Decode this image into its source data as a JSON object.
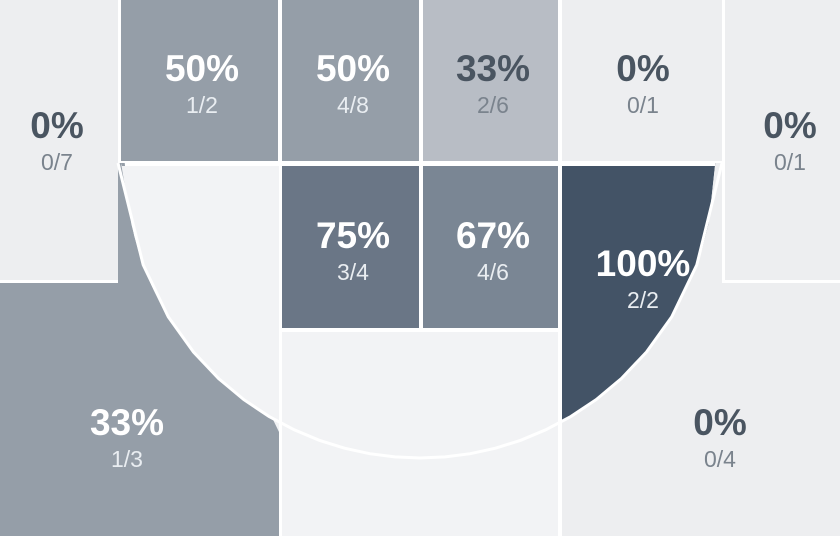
{
  "chart_data": {
    "type": "heatmap",
    "title": "",
    "zones": [
      {
        "id": "left-corner-three",
        "label": "0%",
        "made": 0,
        "attempts": 7,
        "attempts_label": "0/7"
      },
      {
        "id": "left-baseline-mid",
        "label": "50%",
        "made": 1,
        "attempts": 2,
        "attempts_label": "1/2"
      },
      {
        "id": "left-paint-top",
        "label": "50%",
        "made": 4,
        "attempts": 8,
        "attempts_label": "4/8"
      },
      {
        "id": "right-paint-top",
        "label": "33%",
        "made": 2,
        "attempts": 6,
        "attempts_label": "2/6"
      },
      {
        "id": "right-baseline-mid",
        "label": "0%",
        "made": 0,
        "attempts": 1,
        "attempts_label": "0/1"
      },
      {
        "id": "right-corner-three",
        "label": "0%",
        "made": 0,
        "attempts": 1,
        "attempts_label": "0/1"
      },
      {
        "id": "left-paint-mid",
        "label": "75%",
        "made": 3,
        "attempts": 4,
        "attempts_label": "3/4"
      },
      {
        "id": "right-paint-mid",
        "label": "67%",
        "made": 4,
        "attempts": 6,
        "attempts_label": "4/6"
      },
      {
        "id": "right-wing-mid",
        "label": "100%",
        "made": 2,
        "attempts": 2,
        "attempts_label": "2/2"
      },
      {
        "id": "left-wing-three",
        "label": "33%",
        "made": 1,
        "attempts": 3,
        "attempts_label": "1/3"
      },
      {
        "id": "right-wing-three",
        "label": "0%",
        "made": 0,
        "attempts": 4,
        "attempts_label": "0/4"
      },
      {
        "id": "left-elbow-mid",
        "label": "",
        "made": null,
        "attempts": null,
        "attempts_label": ""
      },
      {
        "id": "top-key-mid",
        "label": "",
        "made": null,
        "attempts": null,
        "attempts_label": ""
      },
      {
        "id": "top-key-three",
        "label": "",
        "made": null,
        "attempts": null,
        "attempts_label": ""
      }
    ]
  },
  "colors": {
    "background": "#ffffff",
    "zone_empty": "#f2f3f5",
    "zone_zero": "#edeef0",
    "zone_33_mid": "#b8bdc5",
    "zone_33_three": "#959ea8",
    "zone_50": "#959ea8",
    "zone_67": "#7a8694",
    "zone_75": "#6a7686",
    "zone_100": "#435366",
    "text_dark": "#4a5561",
    "text_dark_sub": "#7a838d",
    "text_light": "#ffffff",
    "text_light_sub": "#e9edf1",
    "border": "#ffffff"
  }
}
